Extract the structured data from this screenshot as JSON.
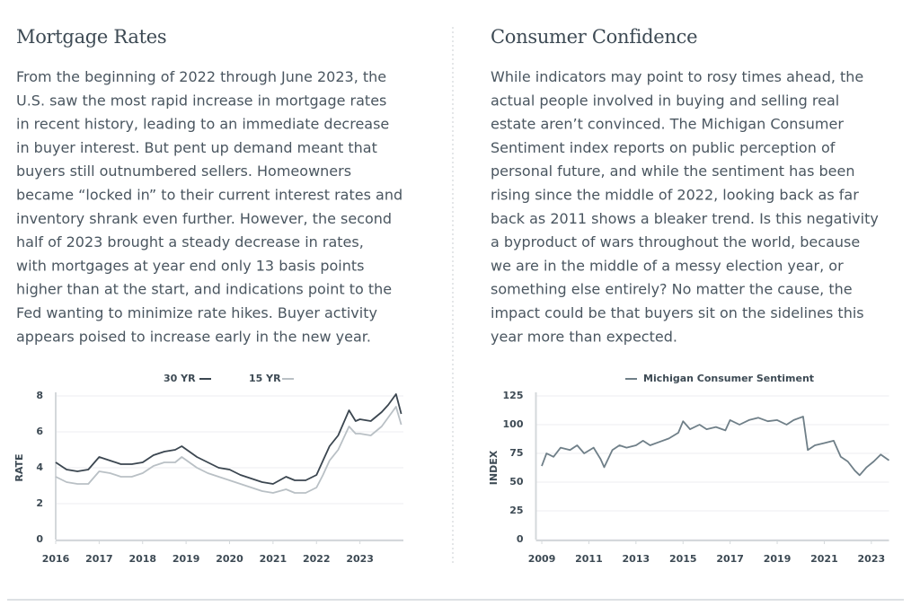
{
  "sections": [
    {
      "heading": "Mortgage Rates",
      "paragraph": [
        "From the beginning of 2022 through June 2023, the",
        "U.S. saw the most rapid increase in mortgage rates",
        "in recent history, leading to an immediate decrease",
        "in buyer interest. But pent up demand meant that",
        "buyers still outnumbered sellers. Homeowners",
        "became “locked in” to their current interest rates and",
        "inventory shrank even further. However, the second",
        "half of 2023 brought a steady decrease in rates,",
        "with mortgages at year end only 13 basis points",
        "higher than at the start, and indications point to the",
        "Fed wanting to minimize rate hikes. Buyer activity",
        "appears poised to increase early in the new year."
      ]
    },
    {
      "heading": "Consumer Confidence",
      "paragraph": [
        "While indicators may point to rosy times ahead, the",
        "actual people involved in buying and selling real",
        "estate aren’t convinced. The Michigan Consumer",
        "Sentiment index reports on public perception of",
        "personal future, and while the sentiment has been",
        "rising since the middle of 2022, looking back as far",
        "back as 2011 shows a bleaker trend. Is this negativity",
        "a byproduct of wars throughout the world, because",
        "we are in the middle of a messy election year, or",
        "something else entirely? No matter the cause, the",
        "impact could be that buyers sit on the sidelines this",
        "year more than expected."
      ]
    }
  ],
  "chart_data": [
    {
      "type": "line",
      "y_label": "RATE",
      "x": [
        2016,
        2016.25,
        2016.5,
        2016.75,
        2017,
        2017.25,
        2017.5,
        2017.75,
        2018,
        2018.25,
        2018.5,
        2018.75,
        2018.9,
        2019.25,
        2019.5,
        2019.75,
        2020,
        2020.25,
        2020.5,
        2020.75,
        2021,
        2021.3,
        2021.5,
        2021.75,
        2022,
        2022.15,
        2022.3,
        2022.5,
        2022.75,
        2022.9,
        2023,
        2023.25,
        2023.5,
        2023.65,
        2023.83,
        2023.95
      ],
      "series": [
        {
          "name": "30 YR",
          "color": "#3b4650",
          "values": [
            4.3,
            3.9,
            3.8,
            3.9,
            4.6,
            4.4,
            4.2,
            4.2,
            4.3,
            4.7,
            4.9,
            5.0,
            5.2,
            4.6,
            4.3,
            4.0,
            3.9,
            3.6,
            3.4,
            3.2,
            3.1,
            3.5,
            3.3,
            3.3,
            3.6,
            4.4,
            5.2,
            5.8,
            7.2,
            6.6,
            6.7,
            6.6,
            7.1,
            7.5,
            8.1,
            7.0
          ]
        },
        {
          "name": "15 YR",
          "color": "#b9c0c5",
          "values": [
            3.5,
            3.2,
            3.1,
            3.1,
            3.8,
            3.7,
            3.5,
            3.5,
            3.7,
            4.1,
            4.3,
            4.3,
            4.6,
            4.0,
            3.7,
            3.5,
            3.3,
            3.1,
            2.9,
            2.7,
            2.6,
            2.8,
            2.6,
            2.6,
            2.9,
            3.6,
            4.4,
            5.0,
            6.3,
            5.9,
            5.9,
            5.8,
            6.3,
            6.8,
            7.4,
            6.4
          ]
        }
      ],
      "xlim": [
        2016,
        2024
      ],
      "xticks": [
        2016,
        2017,
        2018,
        2019,
        2020,
        2021,
        2022,
        2023
      ],
      "ylim": [
        0,
        8
      ],
      "yticks": [
        0,
        2,
        4,
        6,
        8
      ],
      "grid": true
    },
    {
      "type": "line",
      "y_label": "INDEX",
      "x": [
        2009,
        2009.2,
        2009.5,
        2009.8,
        2010.2,
        2010.5,
        2010.8,
        2011.2,
        2011.5,
        2011.65,
        2012,
        2012.3,
        2012.6,
        2013,
        2013.3,
        2013.6,
        2014,
        2014.4,
        2014.8,
        2015,
        2015.3,
        2015.7,
        2016,
        2016.4,
        2016.8,
        2017,
        2017.4,
        2017.8,
        2018.2,
        2018.6,
        2019,
        2019.4,
        2019.7,
        2020.1,
        2020.3,
        2020.6,
        2021,
        2021.4,
        2021.7,
        2022,
        2022.3,
        2022.5,
        2022.8,
        2023.1,
        2023.4,
        2023.75
      ],
      "series": [
        {
          "name": "Michigan Consumer Sentiment",
          "color": "#6f7f88",
          "values": [
            64,
            75,
            72,
            80,
            78,
            82,
            75,
            80,
            70,
            63,
            78,
            82,
            80,
            82,
            86,
            82,
            85,
            88,
            93,
            103,
            96,
            100,
            96,
            98,
            95,
            104,
            100,
            104,
            106,
            103,
            104,
            100,
            104,
            107,
            78,
            82,
            84,
            86,
            72,
            68,
            60,
            56,
            63,
            68,
            74,
            69
          ]
        }
      ],
      "xlim": [
        2008.75,
        2023.75
      ],
      "xticks": [
        2009,
        2011,
        2013,
        2015,
        2017,
        2019,
        2021,
        2023
      ],
      "ylim": [
        0,
        125
      ],
      "yticks": [
        0,
        25,
        50,
        75,
        100,
        125
      ],
      "grid": true
    }
  ]
}
